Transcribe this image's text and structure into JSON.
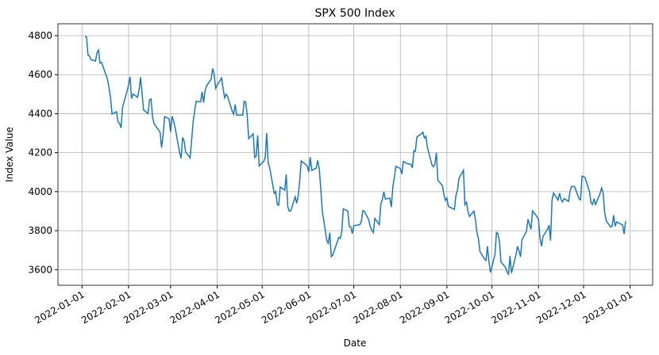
{
  "chart_data": {
    "type": "line",
    "title": "SPX 500 Index",
    "xlabel": "Date",
    "ylabel": "Index Value",
    "color": "#1f77b4",
    "grid": true,
    "xlim": [
      "2021-12-16",
      "2023-01-16"
    ],
    "ylim": [
      3520,
      4861
    ],
    "xticks": [
      "2022-01-01",
      "2022-02-01",
      "2022-03-01",
      "2022-04-01",
      "2022-05-01",
      "2022-06-01",
      "2022-07-01",
      "2022-08-01",
      "2022-09-01",
      "2022-10-01",
      "2022-11-01",
      "2022-12-01",
      "2023-01-01"
    ],
    "yticks": [
      3600,
      3800,
      4000,
      4200,
      4400,
      4600,
      4800
    ],
    "x": [
      "2022-01-03",
      "2022-01-04",
      "2022-01-05",
      "2022-01-06",
      "2022-01-07",
      "2022-01-10",
      "2022-01-11",
      "2022-01-12",
      "2022-01-13",
      "2022-01-14",
      "2022-01-18",
      "2022-01-19",
      "2022-01-20",
      "2022-01-21",
      "2022-01-24",
      "2022-01-25",
      "2022-01-26",
      "2022-01-27",
      "2022-01-28",
      "2022-01-31",
      "2022-02-01",
      "2022-02-02",
      "2022-02-03",
      "2022-02-04",
      "2022-02-07",
      "2022-02-08",
      "2022-02-09",
      "2022-02-10",
      "2022-02-11",
      "2022-02-14",
      "2022-02-15",
      "2022-02-16",
      "2022-02-17",
      "2022-02-18",
      "2022-02-22",
      "2022-02-23",
      "2022-02-24",
      "2022-02-25",
      "2022-02-28",
      "2022-03-01",
      "2022-03-02",
      "2022-03-03",
      "2022-03-04",
      "2022-03-07",
      "2022-03-08",
      "2022-03-09",
      "2022-03-10",
      "2022-03-11",
      "2022-03-14",
      "2022-03-15",
      "2022-03-16",
      "2022-03-17",
      "2022-03-18",
      "2022-03-21",
      "2022-03-22",
      "2022-03-23",
      "2022-03-24",
      "2022-03-25",
      "2022-03-28",
      "2022-03-29",
      "2022-03-30",
      "2022-03-31",
      "2022-04-01",
      "2022-04-04",
      "2022-04-05",
      "2022-04-06",
      "2022-04-07",
      "2022-04-08",
      "2022-04-11",
      "2022-04-12",
      "2022-04-13",
      "2022-04-14",
      "2022-04-18",
      "2022-04-19",
      "2022-04-20",
      "2022-04-21",
      "2022-04-22",
      "2022-04-25",
      "2022-04-26",
      "2022-04-27",
      "2022-04-28",
      "2022-04-29",
      "2022-05-02",
      "2022-05-03",
      "2022-05-04",
      "2022-05-05",
      "2022-05-06",
      "2022-05-09",
      "2022-05-10",
      "2022-05-11",
      "2022-05-12",
      "2022-05-13",
      "2022-05-16",
      "2022-05-17",
      "2022-05-18",
      "2022-05-19",
      "2022-05-20",
      "2022-05-23",
      "2022-05-24",
      "2022-05-25",
      "2022-05-26",
      "2022-05-27",
      "2022-05-31",
      "2022-06-01",
      "2022-06-02",
      "2022-06-03",
      "2022-06-06",
      "2022-06-07",
      "2022-06-08",
      "2022-06-09",
      "2022-06-10",
      "2022-06-13",
      "2022-06-14",
      "2022-06-15",
      "2022-06-16",
      "2022-06-17",
      "2022-06-21",
      "2022-06-22",
      "2022-06-23",
      "2022-06-24",
      "2022-06-27",
      "2022-06-28",
      "2022-06-29",
      "2022-06-30",
      "2022-07-01",
      "2022-07-05",
      "2022-07-06",
      "2022-07-07",
      "2022-07-08",
      "2022-07-11",
      "2022-07-12",
      "2022-07-13",
      "2022-07-14",
      "2022-07-15",
      "2022-07-18",
      "2022-07-19",
      "2022-07-20",
      "2022-07-21",
      "2022-07-22",
      "2022-07-25",
      "2022-07-26",
      "2022-07-27",
      "2022-07-28",
      "2022-07-29",
      "2022-08-01",
      "2022-08-02",
      "2022-08-03",
      "2022-08-04",
      "2022-08-05",
      "2022-08-08",
      "2022-08-09",
      "2022-08-10",
      "2022-08-11",
      "2022-08-12",
      "2022-08-15",
      "2022-08-16",
      "2022-08-17",
      "2022-08-18",
      "2022-08-19",
      "2022-08-22",
      "2022-08-23",
      "2022-08-24",
      "2022-08-25",
      "2022-08-26",
      "2022-08-29",
      "2022-08-30",
      "2022-08-31",
      "2022-09-01",
      "2022-09-02",
      "2022-09-06",
      "2022-09-07",
      "2022-09-08",
      "2022-09-09",
      "2022-09-12",
      "2022-09-13",
      "2022-09-14",
      "2022-09-15",
      "2022-09-16",
      "2022-09-19",
      "2022-09-20",
      "2022-09-21",
      "2022-09-22",
      "2022-09-23",
      "2022-09-26",
      "2022-09-27",
      "2022-09-28",
      "2022-09-29",
      "2022-09-30",
      "2022-10-03",
      "2022-10-04",
      "2022-10-05",
      "2022-10-06",
      "2022-10-07",
      "2022-10-10",
      "2022-10-11",
      "2022-10-12",
      "2022-10-13",
      "2022-10-14",
      "2022-10-17",
      "2022-10-18",
      "2022-10-19",
      "2022-10-20",
      "2022-10-21",
      "2022-10-24",
      "2022-10-25",
      "2022-10-26",
      "2022-10-27",
      "2022-10-28",
      "2022-10-31",
      "2022-11-01",
      "2022-11-02",
      "2022-11-03",
      "2022-11-04",
      "2022-11-07",
      "2022-11-08",
      "2022-11-09",
      "2022-11-10",
      "2022-11-11",
      "2022-11-14",
      "2022-11-15",
      "2022-11-16",
      "2022-11-17",
      "2022-11-18",
      "2022-11-21",
      "2022-11-22",
      "2022-11-23",
      "2022-11-25",
      "2022-11-28",
      "2022-11-29",
      "2022-11-30",
      "2022-12-01",
      "2022-12-02",
      "2022-12-05",
      "2022-12-06",
      "2022-12-07",
      "2022-12-08",
      "2022-12-09",
      "2022-12-12",
      "2022-12-13",
      "2022-12-14",
      "2022-12-15",
      "2022-12-16",
      "2022-12-19",
      "2022-12-20",
      "2022-12-21",
      "2022-12-22",
      "2022-12-23",
      "2022-12-27",
      "2022-12-28",
      "2022-12-29"
    ],
    "values": [
      4797,
      4794,
      4701,
      4696,
      4677,
      4670,
      4713,
      4726,
      4659,
      4663,
      4577,
      4533,
      4483,
      4398,
      4410,
      4357,
      4350,
      4327,
      4432,
      4516,
      4546,
      4589,
      4477,
      4501,
      4484,
      4522,
      4587,
      4504,
      4419,
      4401,
      4472,
      4475,
      4381,
      4349,
      4305,
      4226,
      4288,
      4385,
      4374,
      4306,
      4387,
      4363,
      4329,
      4201,
      4171,
      4278,
      4260,
      4204,
      4173,
      4263,
      4358,
      4412,
      4463,
      4461,
      4512,
      4457,
      4520,
      4543,
      4576,
      4632,
      4602,
      4530,
      4546,
      4583,
      4526,
      4481,
      4500,
      4488,
      4413,
      4397,
      4447,
      4392,
      4392,
      4463,
      4459,
      4394,
      4272,
      4296,
      4175,
      4183,
      4288,
      4132,
      4155,
      4175,
      4300,
      4147,
      4123,
      3991,
      4001,
      3935,
      3930,
      4024,
      4008,
      4088,
      3924,
      3901,
      3901,
      3974,
      3941,
      3979,
      4058,
      4158,
      4132,
      4101,
      4177,
      4109,
      4121,
      4161,
      4116,
      4018,
      3901,
      3750,
      3735,
      3790,
      3667,
      3675,
      3765,
      3760,
      3796,
      3912,
      3901,
      3821,
      3819,
      3785,
      3825,
      3831,
      3845,
      3903,
      3899,
      3855,
      3819,
      3802,
      3790,
      3863,
      3831,
      3937,
      3960,
      3999,
      3962,
      3967,
      3921,
      4024,
      4073,
      4130,
      4119,
      4091,
      4155,
      4152,
      4145,
      4140,
      4122,
      4210,
      4207,
      4280,
      4297,
      4305,
      4275,
      4284,
      4228,
      4138,
      4128,
      4141,
      4200,
      4058,
      4031,
      3986,
      3955,
      3967,
      3924,
      3909,
      3980,
      4006,
      4067,
      4110,
      3933,
      3946,
      3901,
      3873,
      3900,
      3856,
      3790,
      3758,
      3693,
      3655,
      3647,
      3720,
      3640,
      3586,
      3678,
      3791,
      3783,
      3744,
      3640,
      3612,
      3589,
      3577,
      3670,
      3583,
      3677,
      3720,
      3695,
      3666,
      3753,
      3797,
      3859,
      3831,
      3807,
      3901,
      3872,
      3856,
      3760,
      3720,
      3771,
      3807,
      3828,
      3749,
      3956,
      3993,
      3957,
      3992,
      3959,
      3947,
      3965,
      3950,
      4003,
      4027,
      4026,
      3964,
      3958,
      4080,
      4077,
      4072,
      3999,
      3941,
      3934,
      3964,
      3934,
      3991,
      4019,
      3996,
      3896,
      3852,
      3818,
      3822,
      3879,
      3823,
      3845,
      3829,
      3783,
      3849
    ]
  }
}
